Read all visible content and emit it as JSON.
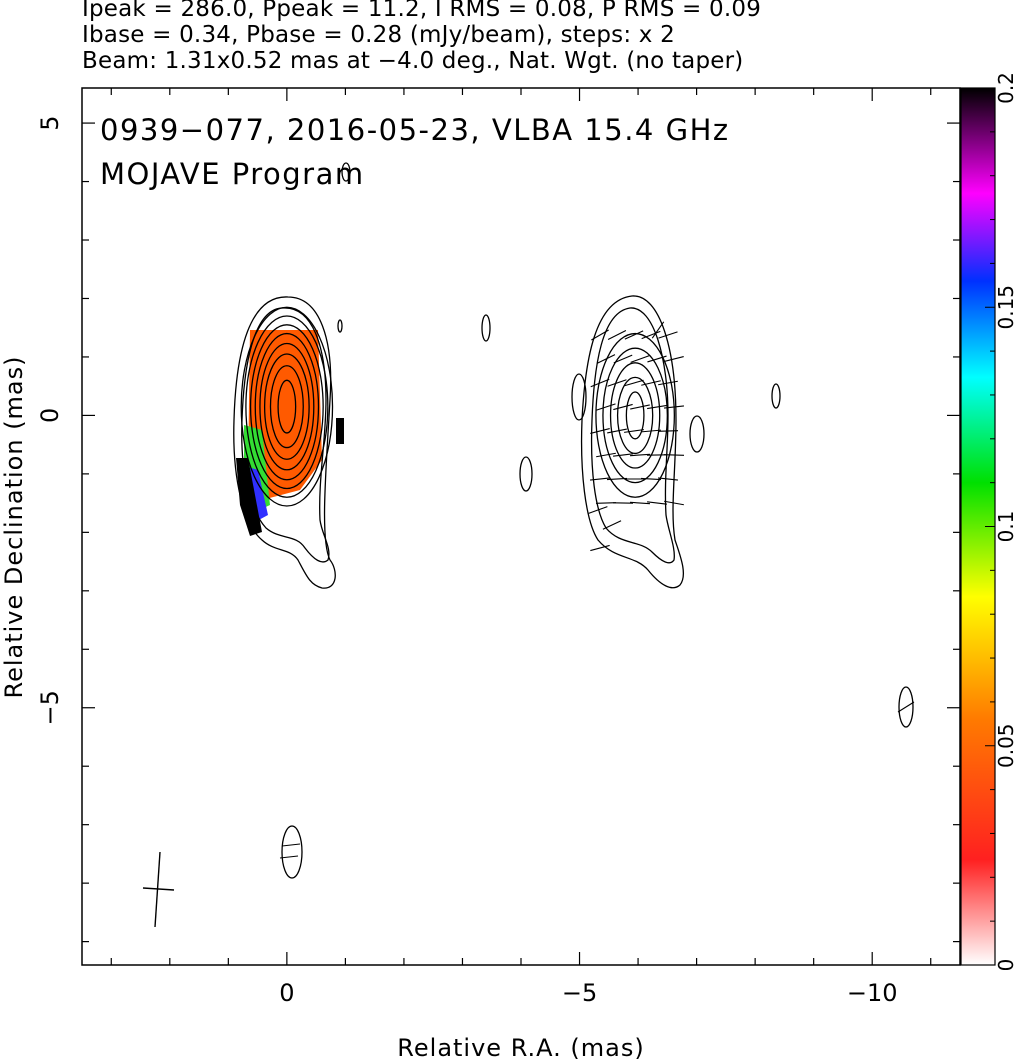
{
  "header": {
    "line1": "Ipeak = 286.0, Ppeak = 11.2, I RMS = 0.08, P RMS = 0.09",
    "line2": "Ibase = 0.34, Pbase = 0.28 (mJy/beam), steps: x 2",
    "line3": "Beam: 1.31x0.52 mas at −4.0 deg., Nat. Wgt. (no taper)"
  },
  "chart_data": {
    "type": "heatmap",
    "title": "0939−077, 2016-05-23, VLBA 15.4 GHz",
    "subtitle": "MOJAVE Program",
    "xlabel": "Relative R.A. (mas)",
    "ylabel": "Relative Declination (mas)",
    "xlim": [
      3.5,
      -11.5
    ],
    "ylim": [
      -9.4,
      5.6
    ],
    "x_reversed": true,
    "xticks": [
      0,
      -5,
      -10
    ],
    "xtick_labels": [
      "0",
      "−5",
      "−10"
    ],
    "yticks": [
      5,
      0,
      -5
    ],
    "ytick_labels": [
      "5",
      "0",
      "−5"
    ],
    "colorbar": {
      "range": [
        0,
        0.2
      ],
      "ticks": [
        0,
        0.05,
        0.1,
        0.15,
        0.2
      ],
      "tick_labels": [
        "0",
        "0.05",
        "0.1",
        "0.15",
        "0.2"
      ],
      "colors": [
        "#ffffff",
        "#ff2020",
        "#ff7a00",
        "#ffff00",
        "#00e000",
        "#00ffff",
        "#0030ff",
        "#ff00ff",
        "#000000"
      ]
    },
    "contour_color": "#000000",
    "contours": {
      "core": {
        "cx": 0.0,
        "cy": 0.15,
        "rx": [
          0.15,
          0.28,
          0.38,
          0.46,
          0.54,
          0.62,
          0.7,
          0.78
        ],
        "ry": [
          0.45,
          0.7,
          0.9,
          1.08,
          1.25,
          1.4,
          1.55,
          1.7
        ]
      },
      "component": {
        "cx": -5.95,
        "cy": 0.0,
        "rx": [
          0.15,
          0.3,
          0.42,
          0.55,
          0.67
        ],
        "ry": [
          0.4,
          0.65,
          0.9,
          1.15,
          1.4
        ]
      }
    }
  }
}
